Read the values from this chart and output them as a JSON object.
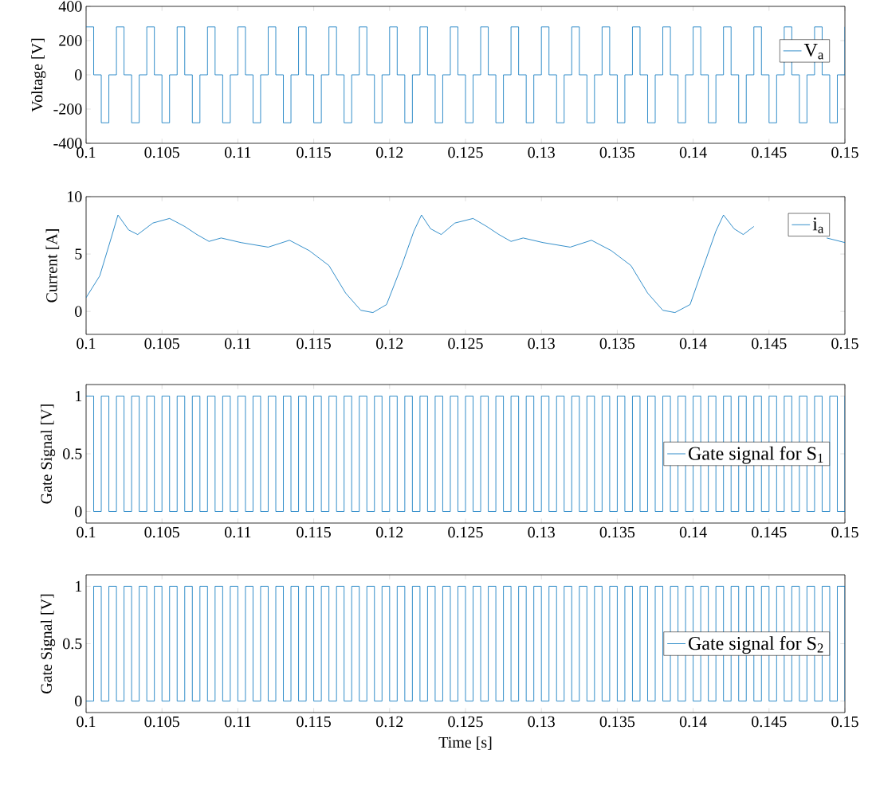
{
  "chart_data": [
    {
      "type": "step",
      "ylabel": "Voltage [V]",
      "legend": "upper right",
      "xlim": [
        0.1,
        0.15
      ],
      "ylim": [
        -400,
        400
      ],
      "xticks": [
        0.1,
        0.105,
        0.11,
        0.115,
        0.12,
        0.125,
        0.13,
        0.135,
        0.14,
        0.145,
        0.15
      ],
      "yticks": [
        -400,
        -200,
        0,
        200,
        400
      ],
      "x": [
        0.1,
        0.1005,
        0.101,
        0.1015,
        0.102,
        0.1025,
        0.103,
        0.1035,
        0.104,
        0.1045,
        0.105,
        0.1055,
        0.106,
        0.1065,
        0.107,
        0.1075,
        0.108,
        0.1085,
        0.109,
        0.1095,
        0.11,
        0.1105,
        0.111,
        0.1115,
        0.112,
        0.1125,
        0.113,
        0.1135,
        0.114,
        0.1145,
        0.115,
        0.1155,
        0.116,
        0.1165,
        0.117,
        0.1175,
        0.118,
        0.1185,
        0.119,
        0.1195,
        0.12,
        0.1205,
        0.121,
        0.1215,
        0.122,
        0.1225,
        0.123,
        0.1235,
        0.124,
        0.1245,
        0.125,
        0.1255,
        0.126,
        0.1265,
        0.127,
        0.1275,
        0.128,
        0.1285,
        0.129,
        0.1295,
        0.13,
        0.1305,
        0.131,
        0.1315,
        0.132,
        0.1325,
        0.133,
        0.1335,
        0.134,
        0.1345,
        0.135,
        0.1355,
        0.136,
        0.1365,
        0.137,
        0.1375,
        0.138,
        0.1385,
        0.139,
        0.1395,
        0.14,
        0.1405,
        0.141,
        0.1415,
        0.142,
        0.1425,
        0.143,
        0.1435,
        0.144,
        0.1445,
        0.145,
        0.1455,
        0.146,
        0.1465,
        0.147,
        0.1475,
        0.148,
        0.1485,
        0.149,
        0.1495,
        0.15
      ],
      "series": [
        {
          "name": "V$_{a}$",
          "color": "#0072bd",
          "values": [
            280,
            0,
            -280,
            0,
            280,
            0,
            -280,
            0,
            280,
            0,
            -280,
            0,
            280,
            0,
            -280,
            0,
            280,
            0,
            -280,
            0,
            280,
            0,
            -280,
            0,
            280,
            0,
            -280,
            0,
            280,
            0,
            -280,
            0,
            280,
            0,
            -280,
            0,
            280,
            0,
            -280,
            0,
            280,
            0,
            -280,
            0,
            280,
            0,
            -280,
            0,
            280,
            0,
            -280,
            0,
            280,
            0,
            -280,
            0,
            280,
            0,
            -280,
            0,
            280,
            0,
            -280,
            0,
            280,
            0,
            -280,
            0,
            280,
            0,
            -280,
            0,
            280,
            0,
            -280,
            0,
            280,
            0,
            -280,
            0,
            280,
            0,
            -280,
            0,
            280,
            0,
            -280,
            0,
            280,
            0,
            -280,
            0,
            280,
            0,
            -280,
            0,
            280,
            0,
            -280,
            0,
            280
          ]
        }
      ]
    },
    {
      "type": "line",
      "ylabel": "Current [A]",
      "legend": "top right",
      "xlim": [
        0.1,
        0.15
      ],
      "ylim": [
        -2,
        10
      ],
      "xticks": [
        0.1,
        0.105,
        0.11,
        0.115,
        0.12,
        0.125,
        0.13,
        0.135,
        0.14,
        0.145,
        0.15
      ],
      "yticks": [
        0,
        5,
        10
      ],
      "series": [
        {
          "name": "i$_{a}$",
          "color": "#0072bd",
          "x": [
            0.1,
            0.1009,
            0.1017,
            0.1021,
            0.1028,
            0.1034,
            0.1044,
            0.1055,
            0.1065,
            0.1073,
            0.1081,
            0.1089,
            0.1102,
            0.112,
            0.1134,
            0.1147,
            0.116,
            0.1171,
            0.1181,
            0.1189,
            0.1198,
            0.1208,
            0.1216,
            0.1221,
            0.1227,
            0.1234,
            0.1243,
            0.1255,
            0.1264,
            0.1272,
            0.128,
            0.1288,
            0.1301,
            0.1319,
            0.1333,
            0.1346,
            0.1359,
            0.137,
            0.138,
            0.1388,
            0.1398,
            0.1407,
            0.1415,
            0.142,
            0.1427,
            0.1433,
            0.144,
            0.1455,
            0.147,
            0.1488,
            0.15
          ],
          "values": [
            1.2,
            3.1,
            6.6,
            8.4,
            7.1,
            6.7,
            7.7,
            8.1,
            7.4,
            6.7,
            6.1,
            6.4,
            6.0,
            5.6,
            6.2,
            5.3,
            4.0,
            1.6,
            0.1,
            -0.1,
            0.6,
            4.0,
            7.0,
            8.4,
            7.2,
            6.7,
            7.7,
            8.1,
            7.4,
            6.7,
            6.1,
            6.4,
            6.0,
            5.6,
            6.2,
            5.3,
            4.0,
            1.6,
            0.1,
            -0.1,
            0.6,
            4.0,
            7.0,
            8.4,
            7.2,
            6.7,
            7.4,
            null,
            null,
            6.4,
            6.0
          ]
        }
      ]
    },
    {
      "type": "step",
      "ylabel": "Gate Signal [V]",
      "legend": "right",
      "xlim": [
        0.1,
        0.15
      ],
      "ylim": [
        -0.1,
        1.1
      ],
      "xticks": [
        0.1,
        0.105,
        0.11,
        0.115,
        0.12,
        0.125,
        0.13,
        0.135,
        0.14,
        0.145,
        0.15
      ],
      "yticks": [
        0,
        0.5,
        1
      ],
      "x": [
        0.1,
        0.1005,
        0.101,
        0.1015,
        0.102,
        0.1025,
        0.103,
        0.1035,
        0.104,
        0.1045,
        0.105,
        0.1055,
        0.106,
        0.1065,
        0.107,
        0.1075,
        0.108,
        0.1085,
        0.109,
        0.1095,
        0.11,
        0.1105,
        0.111,
        0.1115,
        0.112,
        0.1125,
        0.113,
        0.1135,
        0.114,
        0.1145,
        0.115,
        0.1155,
        0.116,
        0.1165,
        0.117,
        0.1175,
        0.118,
        0.1185,
        0.119,
        0.1195,
        0.12,
        0.1205,
        0.121,
        0.1215,
        0.122,
        0.1225,
        0.123,
        0.1235,
        0.124,
        0.1245,
        0.125,
        0.1255,
        0.126,
        0.1265,
        0.127,
        0.1275,
        0.128,
        0.1285,
        0.129,
        0.1295,
        0.13,
        0.1305,
        0.131,
        0.1315,
        0.132,
        0.1325,
        0.133,
        0.1335,
        0.134,
        0.1345,
        0.135,
        0.1355,
        0.136,
        0.1365,
        0.137,
        0.1375,
        0.138,
        0.1385,
        0.139,
        0.1395,
        0.14,
        0.1405,
        0.141,
        0.1415,
        0.142,
        0.1425,
        0.143,
        0.1435,
        0.144,
        0.1445,
        0.145,
        0.1455,
        0.146,
        0.1465,
        0.147,
        0.1475,
        0.148,
        0.1485,
        0.149,
        0.1495,
        0.15
      ],
      "series": [
        {
          "name": "Gate signal for S$_{1}$",
          "color": "#0072bd",
          "values": [
            1,
            0,
            1,
            0,
            1,
            0,
            1,
            0,
            1,
            0,
            1,
            0,
            1,
            0,
            1,
            0,
            1,
            0,
            1,
            0,
            1,
            0,
            1,
            0,
            1,
            0,
            1,
            0,
            1,
            0,
            1,
            0,
            1,
            0,
            1,
            0,
            1,
            0,
            1,
            0,
            1,
            0,
            1,
            0,
            1,
            0,
            1,
            0,
            1,
            0,
            1,
            0,
            1,
            0,
            1,
            0,
            1,
            0,
            1,
            0,
            1,
            0,
            1,
            0,
            1,
            0,
            1,
            0,
            1,
            0,
            1,
            0,
            1,
            0,
            1,
            0,
            1,
            0,
            1,
            0,
            1,
            0,
            1,
            0,
            1,
            0,
            1,
            0,
            1,
            0,
            1,
            0,
            1,
            0,
            1,
            0,
            1,
            0,
            1,
            0,
            1
          ]
        }
      ]
    },
    {
      "type": "step",
      "ylabel": "Gate Signal [V]",
      "xlabel": "Time [s]",
      "legend": "right",
      "xlim": [
        0.1,
        0.15
      ],
      "ylim": [
        -0.1,
        1.1
      ],
      "xticks": [
        0.1,
        0.105,
        0.11,
        0.115,
        0.12,
        0.125,
        0.13,
        0.135,
        0.14,
        0.145,
        0.15
      ],
      "yticks": [
        0,
        0.5,
        1
      ],
      "x": [
        0.1,
        0.1005,
        0.101,
        0.1015,
        0.102,
        0.1025,
        0.103,
        0.1035,
        0.104,
        0.1045,
        0.105,
        0.1055,
        0.106,
        0.1065,
        0.107,
        0.1075,
        0.108,
        0.1085,
        0.109,
        0.1095,
        0.11,
        0.1105,
        0.111,
        0.1115,
        0.112,
        0.1125,
        0.113,
        0.1135,
        0.114,
        0.1145,
        0.115,
        0.1155,
        0.116,
        0.1165,
        0.117,
        0.1175,
        0.118,
        0.1185,
        0.119,
        0.1195,
        0.12,
        0.1205,
        0.121,
        0.1215,
        0.122,
        0.1225,
        0.123,
        0.1235,
        0.124,
        0.1245,
        0.125,
        0.1255,
        0.126,
        0.1265,
        0.127,
        0.1275,
        0.128,
        0.1285,
        0.129,
        0.1295,
        0.13,
        0.1305,
        0.131,
        0.1315,
        0.132,
        0.1325,
        0.133,
        0.1335,
        0.134,
        0.1345,
        0.135,
        0.1355,
        0.136,
        0.1365,
        0.137,
        0.1375,
        0.138,
        0.1385,
        0.139,
        0.1395,
        0.14,
        0.1405,
        0.141,
        0.1415,
        0.142,
        0.1425,
        0.143,
        0.1435,
        0.144,
        0.1445,
        0.145,
        0.1455,
        0.146,
        0.1465,
        0.147,
        0.1475,
        0.148,
        0.1485,
        0.149,
        0.1495,
        0.15
      ],
      "series": [
        {
          "name": "Gate signal for S$_{2}$",
          "color": "#0072bd",
          "values": [
            0,
            1,
            0,
            1,
            0,
            1,
            0,
            1,
            0,
            1,
            0,
            1,
            0,
            1,
            0,
            1,
            0,
            1,
            0,
            1,
            0,
            1,
            0,
            1,
            0,
            1,
            0,
            1,
            0,
            1,
            0,
            1,
            0,
            1,
            0,
            1,
            0,
            1,
            0,
            1,
            0,
            1,
            0,
            1,
            0,
            1,
            0,
            1,
            0,
            1,
            0,
            1,
            0,
            1,
            0,
            1,
            0,
            1,
            0,
            1,
            0,
            1,
            0,
            1,
            0,
            1,
            0,
            1,
            0,
            1,
            0,
            1,
            0,
            1,
            0,
            1,
            0,
            1,
            0,
            1,
            0,
            1,
            0,
            1,
            0,
            1,
            0,
            1,
            0,
            1,
            0,
            1,
            0,
            1,
            0,
            1,
            0,
            1,
            0,
            1,
            0
          ]
        }
      ]
    }
  ]
}
